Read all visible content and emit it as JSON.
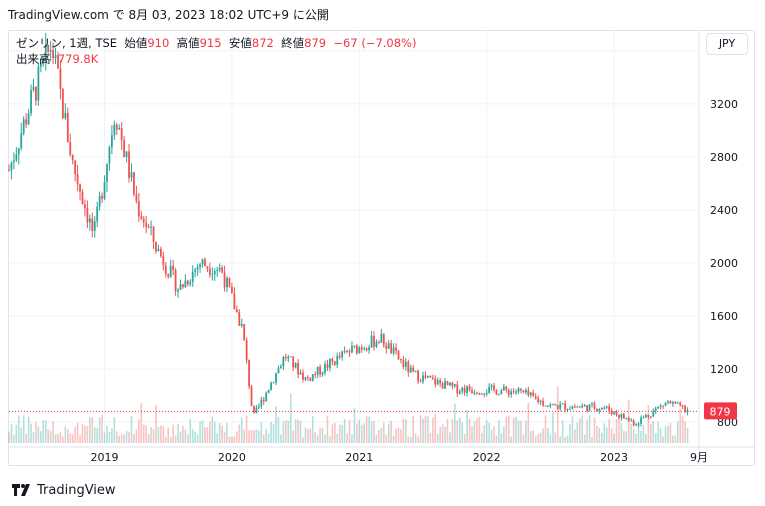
{
  "header": {
    "title": "TradingView.com で 8月 03, 2023 18:02 UTC+9 に公開"
  },
  "legend": {
    "symbol": "ゼンリン, 1週, TSE",
    "open_label": "始値",
    "open": "910",
    "high_label": "高値",
    "high": "915",
    "low_label": "安値",
    "low": "872",
    "close_label": "終値",
    "close": "879",
    "change": "−67 (−7.08%)",
    "volume_label": "出来高",
    "volume": "779.8K"
  },
  "currency": "JPY",
  "last_price_tag": "879",
  "footer": {
    "brand": "TradingView"
  },
  "colors": {
    "up": "#26a69a",
    "down": "#ef5350",
    "grid": "#f0f3fa",
    "axis_text": "#131722"
  },
  "chart_data": {
    "type": "candlestick",
    "title": "ゼンリン, 1週, TSE",
    "x_ticks": [
      "2019",
      "2020",
      "2021",
      "2022",
      "2023",
      "9月"
    ],
    "y_ticks": [
      800,
      1200,
      1600,
      2000,
      2400,
      2800,
      3200,
      3600
    ],
    "ylim": [
      640,
      3750
    ],
    "grid": true,
    "x_range": [
      "2018-04",
      "2023-09"
    ],
    "last_close": 879,
    "price_path": [
      {
        "date": "2018-04",
        "close": 2700
      },
      {
        "date": "2018-06",
        "close": 3200
      },
      {
        "date": "2018-08",
        "close": 3650
      },
      {
        "date": "2018-10",
        "close": 2750
      },
      {
        "date": "2018-12",
        "close": 2200
      },
      {
        "date": "2019-02",
        "close": 3150
      },
      {
        "date": "2019-04",
        "close": 2450
      },
      {
        "date": "2019-06",
        "close": 2100
      },
      {
        "date": "2019-08",
        "close": 1800
      },
      {
        "date": "2019-10",
        "close": 2000
      },
      {
        "date": "2019-12",
        "close": 1950
      },
      {
        "date": "2020-02",
        "close": 1500
      },
      {
        "date": "2020-03",
        "close": 830
      },
      {
        "date": "2020-06",
        "close": 1300
      },
      {
        "date": "2020-08",
        "close": 1120
      },
      {
        "date": "2020-12",
        "close": 1330
      },
      {
        "date": "2021-03",
        "close": 1430
      },
      {
        "date": "2021-06",
        "close": 1160
      },
      {
        "date": "2021-10",
        "close": 1050
      },
      {
        "date": "2022-04",
        "close": 1030
      },
      {
        "date": "2022-07",
        "close": 920
      },
      {
        "date": "2022-12",
        "close": 910
      },
      {
        "date": "2023-03",
        "close": 790
      },
      {
        "date": "2023-06",
        "close": 950
      },
      {
        "date": "2023-08",
        "close": 879
      }
    ],
    "volume_max_label": "779.8K"
  }
}
